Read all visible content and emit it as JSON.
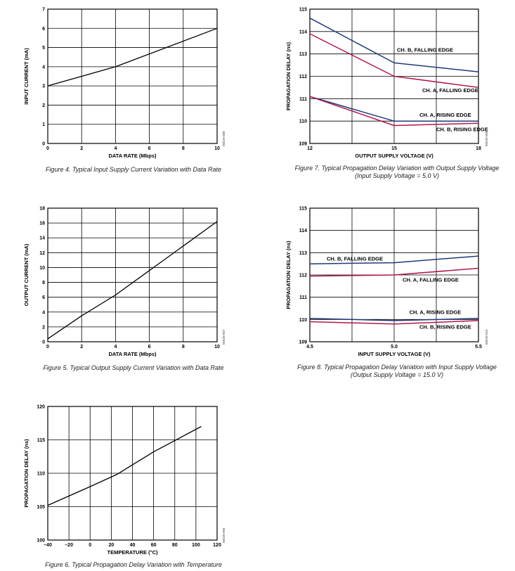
{
  "charts": [
    {
      "id": "fig4",
      "caption": "Figure 4. Typical Input Supply Current Variation with Data Rate",
      "code": "06520-008",
      "chart_data": {
        "type": "line",
        "xlabel": "DATA RATE (Mbps)",
        "ylabel": "INPUT CURRENT (mA)",
        "xlim": [
          0,
          10
        ],
        "ylim": [
          0,
          7
        ],
        "xticks": [
          0,
          2,
          4,
          6,
          8,
          10
        ],
        "yticks": [
          0,
          1,
          2,
          3,
          4,
          5,
          6,
          7
        ],
        "xtick_labels": [
          "0",
          "2",
          "4",
          "6",
          "8",
          "10"
        ],
        "ytick_labels": [
          "0",
          "1",
          "2",
          "3",
          "4",
          "5",
          "6",
          "7"
        ],
        "grid": true,
        "series": [
          {
            "name": "",
            "color": "#000000",
            "x": [
              0,
              4,
              10
            ],
            "y": [
              3.0,
              4.0,
              6.0
            ]
          }
        ],
        "annotations": []
      }
    },
    {
      "id": "fig5",
      "caption": "Figure 5. Typical Output Supply Current Variation with Data Rate",
      "code": "06520-007",
      "chart_data": {
        "type": "line",
        "xlabel": "DATA RATE (Mbps)",
        "ylabel": "OUTPUT CURRENT (mA)",
        "xlim": [
          0,
          10
        ],
        "ylim": [
          0,
          18
        ],
        "xticks": [
          0,
          2,
          4,
          6,
          8,
          10
        ],
        "yticks": [
          0,
          2,
          4,
          6,
          8,
          10,
          12,
          14,
          16,
          18
        ],
        "xtick_labels": [
          "0",
          "2",
          "4",
          "6",
          "8",
          "10"
        ],
        "ytick_labels": [
          "0",
          "2",
          "4",
          "6",
          "8",
          "10",
          "12",
          "14",
          "16",
          "18"
        ],
        "grid": true,
        "series": [
          {
            "name": "",
            "color": "#000000",
            "x": [
              0,
              2,
              4,
              6,
              8,
              10
            ],
            "y": [
              0.4,
              3.5,
              6.3,
              9.6,
              12.9,
              16.2
            ]
          }
        ],
        "annotations": []
      }
    },
    {
      "id": "fig6",
      "caption": "Figure 6. Typical Propagation Delay Variation with Temperature",
      "code": "06520-006",
      "chart_data": {
        "type": "line",
        "xlabel": "TEMPERATURE (°C)",
        "ylabel": "PROPAGATION DELAY (ns)",
        "xlim": [
          -40,
          120
        ],
        "ylim": [
          100,
          120
        ],
        "xticks": [
          -40,
          -20,
          0,
          20,
          40,
          60,
          80,
          100,
          120
        ],
        "yticks": [
          100,
          105,
          110,
          115,
          120
        ],
        "xtick_labels": [
          "–40",
          "–20",
          "0",
          "20",
          "40",
          "60",
          "80",
          "100",
          "120"
        ],
        "ytick_labels": [
          "100",
          "105",
          "110",
          "115",
          "120"
        ],
        "grid": true,
        "series": [
          {
            "name": "",
            "color": "#000000",
            "x": [
              -40,
              0,
              25,
              60,
              105
            ],
            "y": [
              105.2,
              108.0,
              109.8,
              113.2,
              117.0
            ]
          }
        ],
        "annotations": []
      }
    },
    {
      "id": "fig7",
      "caption": [
        "Figure 7. Typical Propagation Delay Variation with Output Supply Voltage",
        "(Input Supply Voltage = 5.0 V)"
      ],
      "code": "06520-009",
      "chart_data": {
        "type": "line",
        "xlabel": "OUTPUT SUPPLY VOLTAGE (V)",
        "ylabel": "PROPAGATION DELAY (ns)",
        "xlim": [
          12,
          18
        ],
        "ylim": [
          109,
          115
        ],
        "xticks": [
          12,
          15,
          18
        ],
        "yticks": [
          109,
          110,
          111,
          112,
          113,
          114,
          115
        ],
        "xtick_labels": [
          "12",
          "15",
          "18"
        ],
        "ytick_labels": [
          "109",
          "110",
          "111",
          "112",
          "113",
          "114",
          "115"
        ],
        "xgrid": [
          13.5,
          15,
          16.5
        ],
        "grid": true,
        "series": [
          {
            "name": "CH. B, FALLING EDGE",
            "color": "#1f3a7a",
            "x": [
              12,
              15,
              18
            ],
            "y": [
              114.6,
              112.6,
              112.2
            ]
          },
          {
            "name": "CH. A, FALLING EDGE",
            "color": "#b0174e",
            "x": [
              12,
              15,
              18
            ],
            "y": [
              113.9,
              112.0,
              111.5
            ]
          },
          {
            "name": "CH. A, RISING EDGE",
            "color": "#1f3a7a",
            "x": [
              12,
              15,
              18
            ],
            "y": [
              111.1,
              110.0,
              110.0
            ]
          },
          {
            "name": "CH. B, RISING EDGE",
            "color": "#b0174e",
            "x": [
              12,
              15,
              18
            ],
            "y": [
              111.1,
              109.8,
              109.9
            ]
          }
        ],
        "annotations": [
          {
            "text": "CH. B, FALLING EDGE",
            "x": 15.1,
            "y": 113.1
          },
          {
            "text": "CH. A, FALLING EDGE",
            "x": 16.0,
            "y": 111.3
          },
          {
            "text": "CH. A, RISING EDGE",
            "x": 15.9,
            "y": 110.2
          },
          {
            "text": "CH. B, RISING EDGE",
            "x": 16.5,
            "y": 109.55
          }
        ]
      }
    },
    {
      "id": "fig8",
      "caption": [
        "Figure 8. Typical Propagation Delay Variation with Input Supply Voltage",
        "(Output Supply Voltage = 15.0 V)"
      ],
      "code": "06520-010",
      "chart_data": {
        "type": "line",
        "xlabel": "INPUT SUPPLY VOLTAGE (V)",
        "ylabel": "PROPAGATION DELAY (ns)",
        "xlim": [
          4.5,
          5.5
        ],
        "ylim": [
          109,
          115
        ],
        "xticks": [
          4.5,
          5.0,
          5.5
        ],
        "yticks": [
          109,
          110,
          111,
          112,
          113,
          114,
          115
        ],
        "xtick_labels": [
          "4.5",
          "5.0",
          "5.5"
        ],
        "ytick_labels": [
          "109",
          "110",
          "111",
          "112",
          "113",
          "114",
          "115"
        ],
        "xgrid": [
          4.75,
          5.0,
          5.25
        ],
        "grid": true,
        "series": [
          {
            "name": "CH. B, FALLING EDGE",
            "color": "#1f3a7a",
            "x": [
              4.5,
              5.0,
              5.5
            ],
            "y": [
              112.5,
              112.55,
              112.85
            ]
          },
          {
            "name": "CH. A, FALLING EDGE",
            "color": "#b0174e",
            "x": [
              4.5,
              5.0,
              5.5
            ],
            "y": [
              111.95,
              112.0,
              112.3
            ]
          },
          {
            "name": "CH. A, RISING EDGE",
            "color": "#1f3a7a",
            "x": [
              4.5,
              5.0,
              5.5
            ],
            "y": [
              110.05,
              109.95,
              110.05
            ]
          },
          {
            "name": "CH. B, RISING EDGE",
            "color": "#b0174e",
            "x": [
              4.5,
              5.0,
              5.5
            ],
            "y": [
              109.9,
              109.8,
              109.95
            ]
          }
        ],
        "annotations": [
          {
            "text": "CH. B, FALLING EDGE",
            "x": 4.6,
            "y": 112.65
          },
          {
            "text": "CH. A, FALLING EDGE",
            "x": 5.05,
            "y": 111.7
          },
          {
            "text": "CH. A, RISING EDGE",
            "x": 5.09,
            "y": 110.25
          },
          {
            "text": "CH. B, RISING EDGE",
            "x": 5.15,
            "y": 109.58
          }
        ]
      }
    }
  ]
}
